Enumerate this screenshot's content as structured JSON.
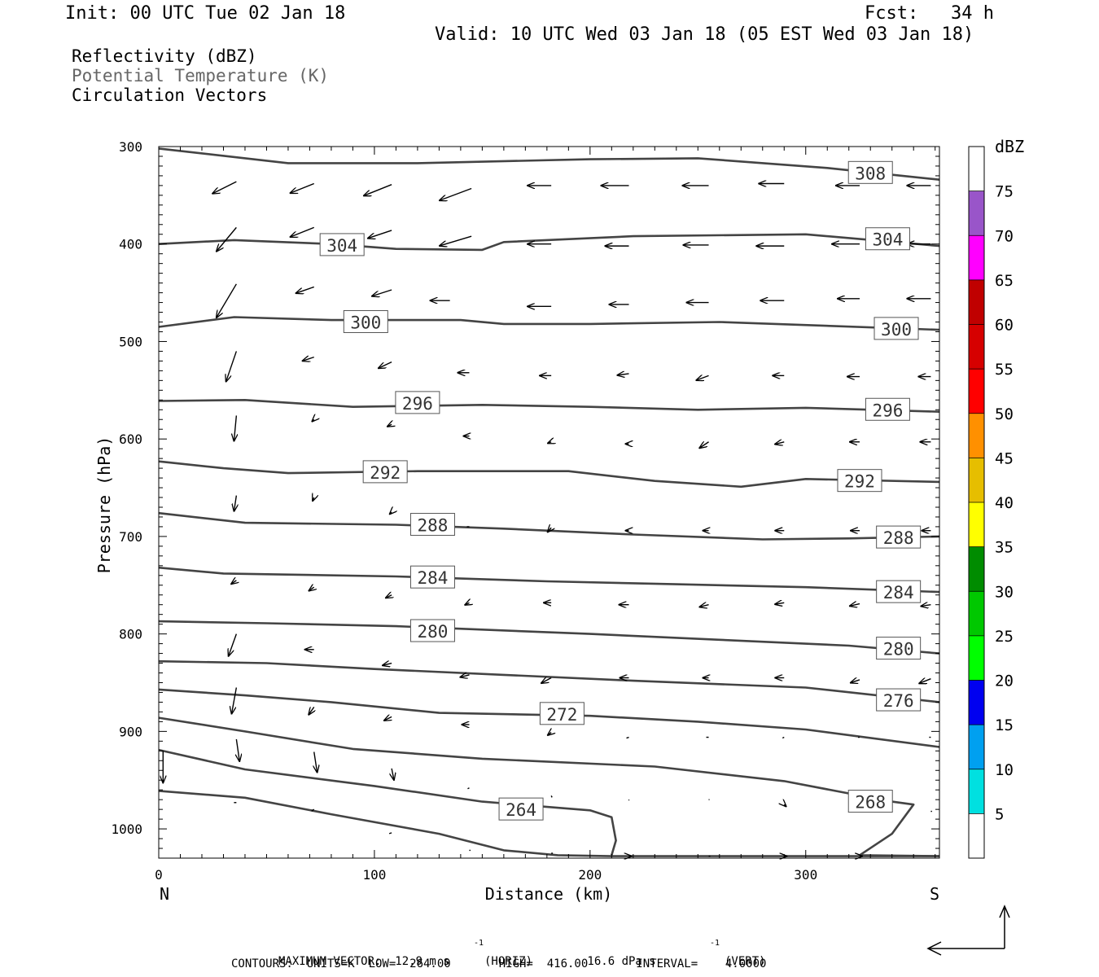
{
  "header": {
    "init": "Init: 00 UTC Tue 02 Jan 18",
    "fcst": "Fcst:   34 h",
    "valid": "Valid: 10 UTC Wed 03 Jan 18 (05 EST Wed 03 Jan 18)"
  },
  "fields": [
    "Reflectivity (dBZ)",
    "Potential Temperature (K)",
    "Circulation Vectors"
  ],
  "footer": {
    "line1_a": "MAXIMUM VECTOR:  12.9 m s",
    "line1_b": "(HORIZ)        16.6 dPa s",
    "line1_c": "(VERT)",
    "sup": "-1",
    "line2": "CONTOURS:  UNITS=K  LOW=  264.00       HIGH=  416.00       INTERVAL=    4.0000"
  },
  "colors": {
    "contour": "#444444",
    "vector": "#000000",
    "axis": "#000000"
  },
  "chart_data": {
    "type": "contour",
    "x_axis": {
      "label": "Distance (km)",
      "range": [
        0,
        362
      ],
      "ticks": [
        0,
        100,
        200,
        300
      ],
      "left_label": "N",
      "right_label": "S"
    },
    "y_axis": {
      "label": "Pressure (hPa)",
      "range": [
        300,
        1030
      ],
      "ticks": [
        300,
        400,
        500,
        600,
        700,
        800,
        900,
        1000
      ],
      "inverted": true
    },
    "colorbar": {
      "title": "dBZ",
      "levels": [
        5,
        10,
        15,
        20,
        25,
        30,
        35,
        40,
        45,
        50,
        55,
        60,
        65,
        70,
        75
      ],
      "colors": [
        "#ffffff",
        "#00e0e0",
        "#00a0f0",
        "#0000f0",
        "#00ff00",
        "#00c800",
        "#008c00",
        "#ffff00",
        "#e6be00",
        "#ff9000",
        "#ff0000",
        "#d60000",
        "#c00000",
        "#ff00ff",
        "#9955c9",
        "#ffffff"
      ]
    },
    "contours": [
      {
        "value": 308,
        "label": "308",
        "label_at": [
          330,
          327
        ],
        "points": [
          [
            0,
            302
          ],
          [
            60,
            317
          ],
          [
            120,
            317
          ],
          [
            200,
            313
          ],
          [
            250,
            312
          ],
          [
            310,
            322
          ],
          [
            362,
            334
          ]
        ]
      },
      {
        "value": 304,
        "label": "304",
        "label_at": [
          85,
          401
        ],
        "points": [
          [
            0,
            400
          ],
          [
            35,
            396
          ],
          [
            80,
            400
          ],
          [
            110,
            405
          ],
          [
            150,
            406
          ],
          [
            160,
            398
          ],
          [
            220,
            392
          ],
          [
            300,
            390
          ],
          [
            362,
            402
          ]
        ]
      },
      {
        "value": 304,
        "label": "304",
        "label_at": [
          338,
          395
        ],
        "points": [
          [
            362,
            402
          ]
        ]
      },
      {
        "value": 300,
        "label": "300",
        "label_at": [
          96,
          480
        ],
        "points": [
          [
            0,
            485
          ],
          [
            35,
            475
          ],
          [
            80,
            478
          ],
          [
            140,
            478
          ],
          [
            160,
            482
          ],
          [
            200,
            482
          ],
          [
            260,
            480
          ],
          [
            362,
            488
          ]
        ]
      },
      {
        "value": 300,
        "label": "300",
        "label_at": [
          342,
          487
        ],
        "points": [
          [
            362,
            488
          ]
        ]
      },
      {
        "value": 296,
        "label": "296",
        "label_at": [
          120,
          563
        ],
        "points": [
          [
            0,
            561
          ],
          [
            40,
            560
          ],
          [
            90,
            567
          ],
          [
            150,
            565
          ],
          [
            200,
            567
          ],
          [
            250,
            570
          ],
          [
            300,
            568
          ],
          [
            362,
            572
          ]
        ]
      },
      {
        "value": 296,
        "label": "296",
        "label_at": [
          338,
          570
        ],
        "points": [
          [
            362,
            572
          ]
        ]
      },
      {
        "value": 292,
        "label": "292",
        "label_at": [
          105,
          634
        ],
        "points": [
          [
            0,
            623
          ],
          [
            30,
            630
          ],
          [
            60,
            635
          ],
          [
            120,
            633
          ],
          [
            190,
            633
          ],
          [
            230,
            643
          ],
          [
            270,
            649
          ],
          [
            300,
            641
          ],
          [
            362,
            644
          ]
        ]
      },
      {
        "value": 292,
        "label": "292",
        "label_at": [
          325,
          643
        ],
        "points": [
          [
            362,
            644
          ]
        ]
      },
      {
        "value": 288,
        "label": "288",
        "label_at": [
          127,
          688
        ],
        "points": [
          [
            0,
            676
          ],
          [
            40,
            686
          ],
          [
            110,
            688
          ],
          [
            160,
            692
          ],
          [
            220,
            698
          ],
          [
            280,
            703
          ],
          [
            320,
            702
          ],
          [
            362,
            700
          ]
        ]
      },
      {
        "value": 288,
        "label": "288",
        "label_at": [
          343,
          701
        ],
        "points": [
          [
            362,
            700
          ]
        ]
      },
      {
        "value": 284,
        "label": "284",
        "label_at": [
          127,
          742
        ],
        "points": [
          [
            0,
            732
          ],
          [
            30,
            738
          ],
          [
            110,
            741
          ],
          [
            180,
            746
          ],
          [
            240,
            749
          ],
          [
            300,
            752
          ],
          [
            362,
            757
          ]
        ]
      },
      {
        "value": 284,
        "label": "284",
        "label_at": [
          343,
          757
        ],
        "points": [
          [
            362,
            757
          ]
        ]
      },
      {
        "value": 280,
        "label": "280",
        "label_at": [
          127,
          797
        ],
        "points": [
          [
            0,
            787
          ],
          [
            50,
            789
          ],
          [
            110,
            792
          ],
          [
            200,
            800
          ],
          [
            260,
            806
          ],
          [
            320,
            812
          ],
          [
            362,
            820
          ]
        ]
      },
      {
        "value": 280,
        "label": "280",
        "label_at": [
          343,
          815
        ],
        "points": [
          [
            362,
            820
          ]
        ]
      },
      {
        "value": 276,
        "label": "276",
        "label_at": [
          343,
          868
        ],
        "points": [
          [
            0,
            828
          ],
          [
            50,
            830
          ],
          [
            100,
            836
          ],
          [
            160,
            842
          ],
          [
            220,
            848
          ],
          [
            300,
            855
          ],
          [
            362,
            870
          ]
        ]
      },
      {
        "value": 272,
        "label": "272",
        "label_at": [
          187,
          882
        ],
        "points": [
          [
            0,
            857
          ],
          [
            40,
            863
          ],
          [
            80,
            870
          ],
          [
            130,
            881
          ],
          [
            200,
            884
          ],
          [
            250,
            890
          ],
          [
            300,
            898
          ],
          [
            362,
            916
          ]
        ]
      },
      {
        "value": 268,
        "label": "268",
        "label_at": [
          330,
          972
        ],
        "points": [
          [
            0,
            886
          ],
          [
            40,
            900
          ],
          [
            90,
            918
          ],
          [
            150,
            928
          ],
          [
            230,
            936
          ],
          [
            290,
            951
          ],
          [
            340,
            972
          ],
          [
            350,
            975
          ],
          [
            340,
            1005
          ],
          [
            325,
            1027
          ],
          [
            362,
            1028
          ]
        ]
      },
      {
        "value": 264,
        "label": "264",
        "label_at": [
          168,
          980
        ],
        "points": [
          [
            0,
            919
          ],
          [
            40,
            939
          ],
          [
            100,
            956
          ],
          [
            150,
            972
          ],
          [
            200,
            981
          ],
          [
            210,
            988
          ],
          [
            212,
            1012
          ],
          [
            210,
            1027
          ]
        ]
      },
      {
        "value": 264,
        "label": "",
        "label_at": null,
        "points": [
          [
            0,
            961
          ],
          [
            40,
            968
          ],
          [
            80,
            985
          ],
          [
            130,
            1005
          ],
          [
            160,
            1022
          ],
          [
            185,
            1027
          ],
          [
            210,
            1028
          ],
          [
            362,
            1028
          ]
        ]
      }
    ],
    "vectors": [
      [
        36,
        336,
        -30,
        15
      ],
      [
        72,
        338,
        -30,
        12
      ],
      [
        108,
        339,
        -35,
        14
      ],
      [
        145,
        343,
        -40,
        15
      ],
      [
        182,
        340,
        -30,
        0
      ],
      [
        218,
        340,
        -35,
        0
      ],
      [
        255,
        340,
        -33,
        0
      ],
      [
        290,
        338,
        -32,
        0
      ],
      [
        325,
        340,
        -30,
        0
      ],
      [
        358,
        340,
        -30,
        0
      ],
      [
        36,
        383,
        -25,
        30
      ],
      [
        72,
        383,
        -30,
        12
      ],
      [
        108,
        386,
        -30,
        10
      ],
      [
        145,
        392,
        -40,
        12
      ],
      [
        182,
        400,
        -30,
        0
      ],
      [
        218,
        402,
        -30,
        0
      ],
      [
        255,
        401,
        -32,
        0
      ],
      [
        290,
        402,
        -35,
        0
      ],
      [
        325,
        400,
        -35,
        0
      ],
      [
        358,
        400,
        -30,
        0
      ],
      [
        36,
        441,
        -25,
        42
      ],
      [
        72,
        444,
        -23,
        8
      ],
      [
        108,
        447,
        -25,
        8
      ],
      [
        135,
        458,
        -25,
        0
      ],
      [
        182,
        464,
        -30,
        0
      ],
      [
        218,
        462,
        -25,
        0
      ],
      [
        255,
        460,
        -28,
        0
      ],
      [
        290,
        458,
        -30,
        0
      ],
      [
        325,
        456,
        -28,
        0
      ],
      [
        358,
        456,
        -30,
        0
      ],
      [
        36,
        510,
        -13,
        38
      ],
      [
        72,
        516,
        -15,
        5
      ],
      [
        108,
        521,
        -17,
        8
      ],
      [
        144,
        532,
        -15,
        0
      ],
      [
        182,
        535,
        -15,
        0
      ],
      [
        218,
        533,
        -15,
        2
      ],
      [
        255,
        535,
        -16,
        6
      ],
      [
        290,
        535,
        -15,
        0
      ],
      [
        325,
        536,
        -16,
        0
      ],
      [
        358,
        536,
        -16,
        0
      ],
      [
        36,
        576,
        -3,
        32
      ],
      [
        72,
        580,
        -3,
        3
      ],
      [
        108,
        585,
        -6,
        3
      ],
      [
        144,
        597,
        -8,
        0
      ],
      [
        182,
        603,
        -5,
        2
      ],
      [
        218,
        605,
        -5,
        0
      ],
      [
        255,
        603,
        -12,
        8
      ],
      [
        290,
        603,
        -12,
        3
      ],
      [
        325,
        603,
        -13,
        0
      ],
      [
        358,
        603,
        -14,
        0
      ],
      [
        36,
        658,
        -3,
        20
      ],
      [
        72,
        660,
        -2,
        5
      ],
      [
        108,
        675,
        -3,
        3
      ],
      [
        144,
        690,
        -3,
        0
      ],
      [
        182,
        691,
        -5,
        6
      ],
      [
        218,
        694,
        -5,
        0
      ],
      [
        255,
        694,
        -8,
        0
      ],
      [
        290,
        694,
        -12,
        0
      ],
      [
        325,
        694,
        -12,
        0
      ],
      [
        358,
        694,
        -12,
        0
      ],
      [
        36,
        745,
        -7,
        5
      ],
      [
        72,
        752,
        -7,
        5
      ],
      [
        108,
        760,
        -8,
        4
      ],
      [
        144,
        768,
        -6,
        3
      ],
      [
        182,
        768,
        -10,
        0
      ],
      [
        218,
        770,
        -13,
        0
      ],
      [
        255,
        770,
        -12,
        3
      ],
      [
        290,
        768,
        -12,
        2
      ],
      [
        325,
        769,
        -13,
        3
      ],
      [
        358,
        770,
        -13,
        2
      ],
      [
        36,
        800,
        -10,
        28
      ],
      [
        72,
        816,
        -12,
        0
      ],
      [
        108,
        830,
        -12,
        3
      ],
      [
        144,
        842,
        -12,
        3
      ],
      [
        182,
        845,
        -13,
        7
      ],
      [
        218,
        845,
        -12,
        0
      ],
      [
        255,
        845,
        -8,
        0
      ],
      [
        290,
        845,
        -12,
        0
      ],
      [
        325,
        847,
        -12,
        4
      ],
      [
        358,
        846,
        -15,
        6
      ],
      [
        36,
        855,
        -6,
        33
      ],
      [
        72,
        875,
        -7,
        10
      ],
      [
        108,
        885,
        -10,
        5
      ],
      [
        144,
        893,
        -10,
        0
      ],
      [
        182,
        901,
        -5,
        4
      ],
      [
        218,
        906,
        -3,
        1
      ],
      [
        255,
        906,
        -3,
        0
      ],
      [
        290,
        906,
        -2,
        1
      ],
      [
        325,
        906,
        -2,
        0
      ],
      [
        358,
        906,
        -2,
        0
      ],
      [
        36,
        908,
        4,
        28
      ],
      [
        72,
        921,
        4,
        26
      ],
      [
        108,
        938,
        3,
        15
      ],
      [
        144,
        958,
        -2,
        1
      ],
      [
        182,
        966,
        1,
        2
      ],
      [
        218,
        970,
        0,
        1
      ],
      [
        255,
        970,
        1,
        0
      ],
      [
        290,
        975,
        3,
        3
      ],
      [
        325,
        980,
        0,
        0
      ],
      [
        358,
        982,
        0,
        0
      ],
      [
        2,
        920,
        0,
        40
      ],
      [
        36,
        973,
        -3,
        0
      ],
      [
        72,
        980,
        -3,
        2
      ],
      [
        108,
        1004,
        -3,
        1
      ],
      [
        144,
        1022,
        0,
        0
      ],
      [
        182,
        1025,
        2,
        0
      ],
      [
        218,
        1028,
        4,
        0
      ],
      [
        255,
        1028,
        2,
        0
      ],
      [
        290,
        1028,
        4,
        0
      ],
      [
        325,
        1028,
        4,
        0
      ]
    ]
  }
}
